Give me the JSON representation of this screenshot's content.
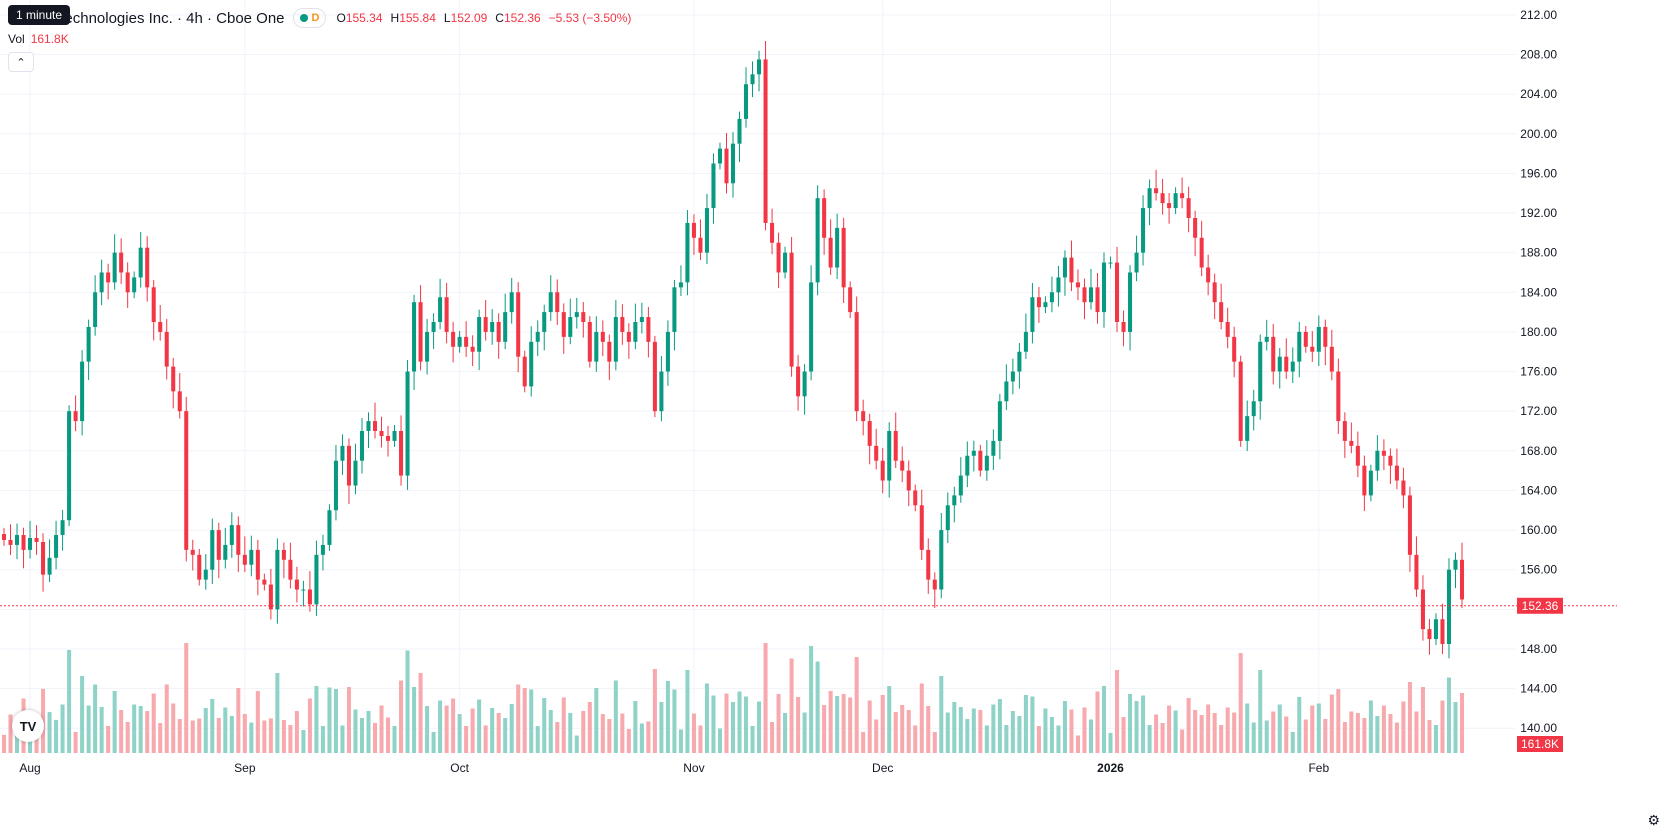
{
  "tooltip": "1 minute",
  "header": {
    "title": "r Technologies Inc. · 4h · Cboe One",
    "badge": "D",
    "o_label": "O",
    "o_value": "155.34",
    "h_label": "H",
    "h_value": "155.84",
    "l_label": "L",
    "l_value": "152.09",
    "c_label": "C",
    "c_value": "152.36",
    "change": "−5.53 (−3.50%)"
  },
  "volume": {
    "label": "Vol",
    "value": "161.8K"
  },
  "icons": {
    "collapse": "chevron-up-icon",
    "logo": "tradingview-logo",
    "settings": "gear-icon"
  },
  "logo_text": "TV",
  "colors": {
    "up": "#089981",
    "down": "#f23645",
    "volume_up": "#8fd3c8",
    "volume_down": "#f7a9ae",
    "grid": "#f0f3fa"
  },
  "chart_data": {
    "type": "candlestick",
    "timeframe": "4h",
    "y_axis": {
      "range": [
        137.5,
        213.5
      ],
      "tick_labels": [
        "212.00",
        "208.00",
        "204.00",
        "200.00",
        "196.00",
        "192.00",
        "188.00",
        "184.00",
        "180.00",
        "176.00",
        "172.00",
        "168.00",
        "164.00",
        "160.00",
        "156.00",
        "152.00",
        "148.00",
        "144.00",
        "140.00"
      ]
    },
    "x_axis": {
      "labels": [
        "Aug",
        "Sep",
        "Oct",
        "Nov",
        "Dec",
        "2026",
        "Feb"
      ],
      "label_index": [
        4,
        37,
        70,
        106,
        135,
        170,
        202
      ]
    },
    "last_price": 152.36,
    "last_price_label": "152.36",
    "volume_label": "161.8K",
    "close": [
      159.0,
      158.5,
      159.5,
      158.0,
      159.2,
      158.8,
      155.5,
      157.2,
      159.5,
      161.0,
      172.0,
      171.0,
      177.0,
      180.5,
      184.0,
      186.0,
      185.0,
      188.0,
      186.0,
      184.0,
      185.5,
      188.5,
      184.5,
      181.0,
      180.0,
      176.5,
      174.0,
      172.0,
      158.0,
      157.5,
      155.0,
      156.0,
      160.0,
      157.0,
      158.5,
      160.5,
      157.5,
      156.5,
      158.0,
      155.0,
      154.5,
      152.0,
      158.0,
      157.0,
      155.0,
      154.0,
      154.0,
      152.5,
      157.5,
      158.5,
      162.0,
      167.0,
      168.5,
      164.5,
      167.0,
      170.0,
      171.0,
      170.0,
      169.5,
      169.0,
      170.0,
      165.5,
      176.0,
      183.0,
      177.0,
      180.0,
      181.0,
      183.5,
      180.0,
      178.5,
      179.5,
      178.5,
      178.0,
      181.5,
      180.0,
      181.0,
      179.0,
      182.0,
      184.0,
      177.5,
      174.5,
      179.0,
      180.0,
      182.0,
      184.0,
      182.0,
      179.5,
      181.5,
      182.0,
      181.0,
      177.0,
      180.0,
      179.0,
      177.0,
      181.5,
      180.0,
      179.0,
      181.0,
      181.5,
      179.0,
      172.0,
      176.0,
      180.0,
      184.5,
      185.0,
      191.0,
      189.5,
      188.0,
      192.5,
      197.0,
      198.5,
      195.0,
      199.0,
      201.5,
      205.0,
      206.0,
      207.5,
      191.0,
      189.0,
      186.0,
      188.0,
      176.5,
      173.5,
      176.0,
      185.0,
      193.5,
      189.5,
      186.5,
      190.5,
      184.5,
      182.0,
      172.0,
      171.0,
      168.5,
      167.0,
      165.0,
      170.0,
      167.0,
      166.0,
      164.0,
      162.5,
      158.0,
      155.0,
      154.0,
      160.0,
      162.5,
      163.5,
      165.5,
      167.5,
      168.0,
      166.0,
      167.5,
      169.0,
      173.0,
      175.0,
      176.0,
      178.0,
      180.0,
      183.5,
      182.5,
      183.0,
      184.0,
      185.5,
      187.5,
      185.0,
      184.5,
      183.0,
      184.5,
      182.0,
      187.0,
      187.0,
      181.0,
      180.0,
      186.0,
      188.0,
      192.5,
      194.5,
      194.0,
      193.0,
      192.5,
      194.0,
      193.5,
      191.5,
      189.5,
      186.5,
      185.0,
      183.0,
      181.0,
      179.5,
      177.0,
      169.0,
      171.5,
      173.0,
      179.0,
      179.5,
      176.0,
      177.5,
      176.0,
      177.0,
      180.0,
      178.5,
      178.0,
      180.5,
      178.5,
      176.0,
      171.0,
      169.0,
      168.5,
      166.5,
      163.5,
      166.0,
      168.0,
      167.5,
      166.5,
      165.0,
      163.5,
      157.5,
      154.0,
      150.0,
      149.0,
      151.0,
      148.5,
      156.0,
      157.0,
      153.0
    ]
  }
}
